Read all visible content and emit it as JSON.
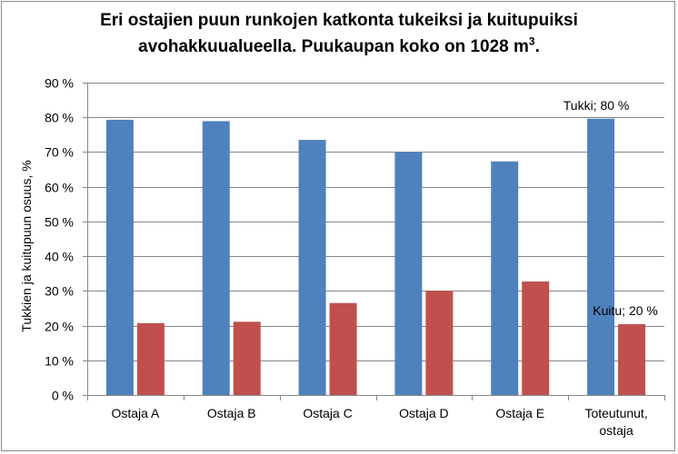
{
  "chart_data": {
    "type": "bar",
    "title_line1": "Eri ostajien puun runkojen katkonta tukeiksi ja kuitupuiksi",
    "title_line2": "avohakkuualueella. Puukaupan koko on 1028 m",
    "title_sup": "3",
    "title_end": ".",
    "ylabel": "Tukkien ja kuitupuun osuus, %",
    "xlabel": "",
    "ylim": [
      0,
      90
    ],
    "y_ticks": [
      "0 %",
      "10 %",
      "20 %",
      "30 %",
      "40 %",
      "50 %",
      "60 %",
      "70 %",
      "80 %",
      "90 %"
    ],
    "grid": true,
    "legend": "none",
    "categories": [
      [
        "Ostaja A"
      ],
      [
        "Ostaja B"
      ],
      [
        "Ostaja C"
      ],
      [
        "Ostaja D"
      ],
      [
        "Ostaja E"
      ],
      [
        "Toteutunut,",
        "ostaja"
      ]
    ],
    "series": [
      {
        "values": [
          79.3,
          78.9,
          73.5,
          70.0,
          67.3,
          79.6
        ],
        "color": "#4f81bd"
      },
      {
        "values": [
          20.7,
          21.1,
          26.5,
          30.0,
          32.7,
          20.4
        ],
        "color": "#c0504d"
      }
    ],
    "annotations": [
      {
        "text": "Tukki; 80 %",
        "series": 0,
        "category": 5
      },
      {
        "text": "Kuitu; 20 %",
        "series": 1,
        "category": 5
      }
    ]
  }
}
